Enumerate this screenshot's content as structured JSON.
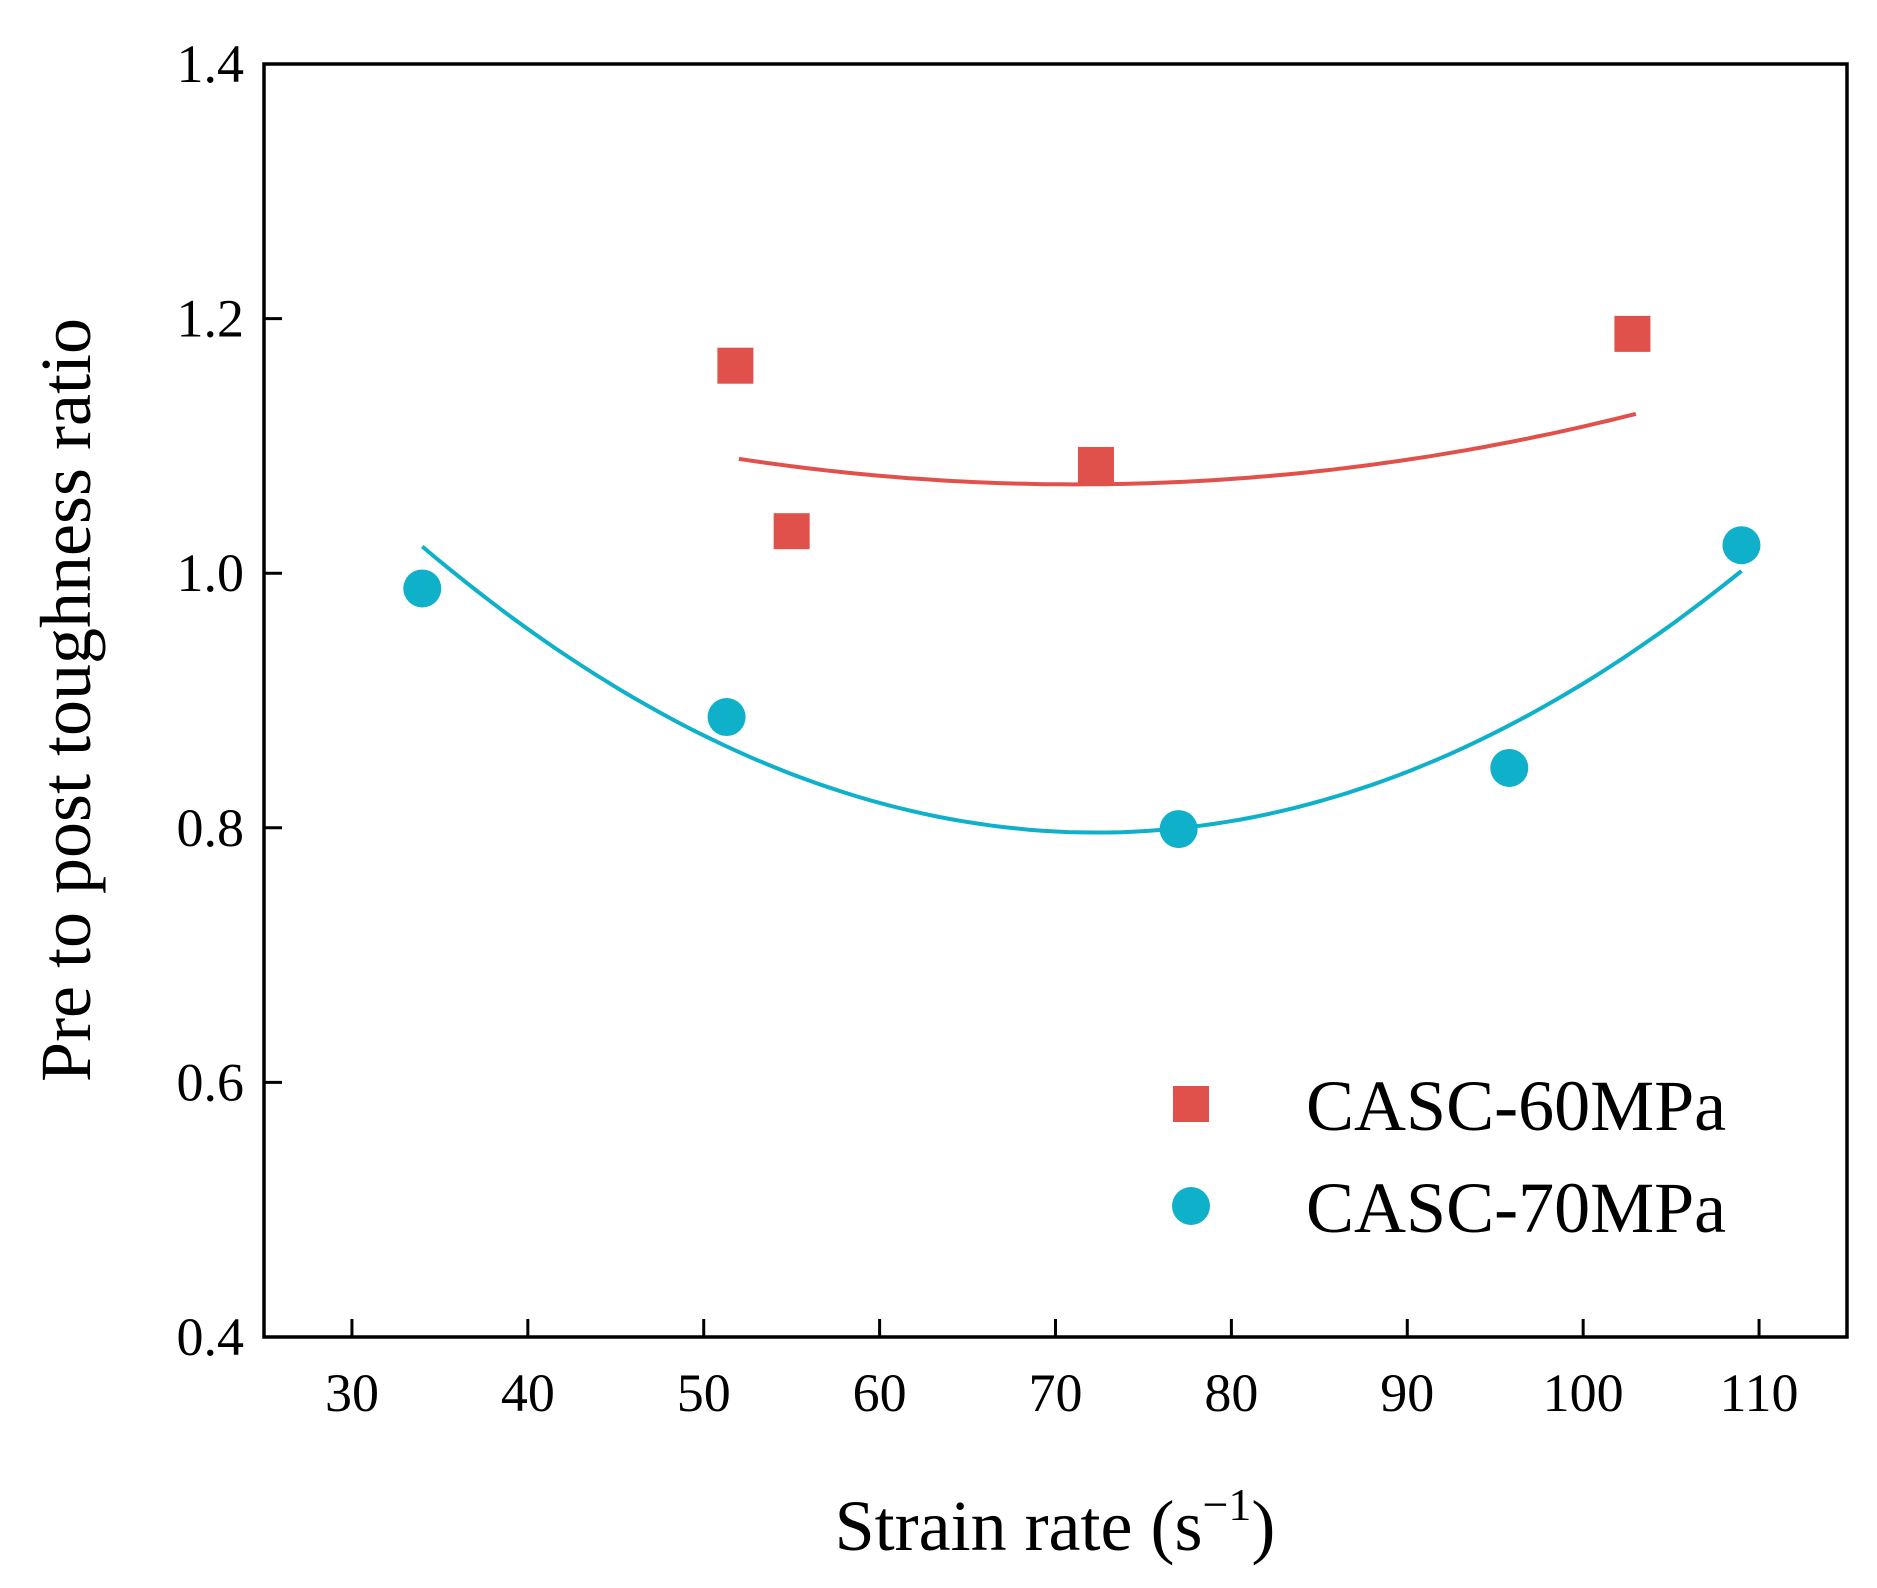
{
  "chart_data": {
    "type": "scatter",
    "title": "",
    "xlabel": "Strain rate (s",
    "xlabel_sup": "−1",
    "xlabel_close": ")",
    "ylabel": "Pre to post toughness ratio",
    "xlim": [
      25,
      115
    ],
    "ylim": [
      0.4,
      1.4
    ],
    "xticks": [
      30,
      40,
      50,
      60,
      70,
      80,
      90,
      100,
      110
    ],
    "xtick_labels": [
      "30",
      "40",
      "50",
      "60",
      "70",
      "80",
      "90",
      "100",
      "110"
    ],
    "yticks": [
      0.4,
      0.6,
      0.8,
      1.0,
      1.2,
      1.4
    ],
    "ytick_labels": [
      "0.4",
      "0.6",
      "0.8",
      "1.0",
      "1.2",
      "1.4"
    ],
    "grid": false,
    "legend_position": "bottom-right",
    "series": [
      {
        "name": "CASC-60MPa",
        "marker": "square",
        "color": "#e0514b",
        "points": [
          {
            "x": 51.8,
            "y": 1.163
          },
          {
            "x": 55.0,
            "y": 1.033
          },
          {
            "x": 72.3,
            "y": 1.085
          },
          {
            "x": 102.8,
            "y": 1.188
          }
        ],
        "fit": {
          "type": "quadratic",
          "x_range": [
            52,
            103
          ],
          "a": 5.46e-05,
          "b": -0.00777,
          "c": 1.3462
        }
      },
      {
        "name": "CASC-70MPa",
        "marker": "circle",
        "color": "#0fb0c9",
        "points": [
          {
            "x": 34.0,
            "y": 0.988
          },
          {
            "x": 51.3,
            "y": 0.887
          },
          {
            "x": 77.0,
            "y": 0.799
          },
          {
            "x": 95.8,
            "y": 0.847
          },
          {
            "x": 109.0,
            "y": 1.022
          }
        ],
        "fit": {
          "type": "quadratic",
          "x_range": [
            34,
            109
          ],
          "a": 0.0001529,
          "b": -0.02212,
          "c": 1.5963
        }
      }
    ]
  }
}
